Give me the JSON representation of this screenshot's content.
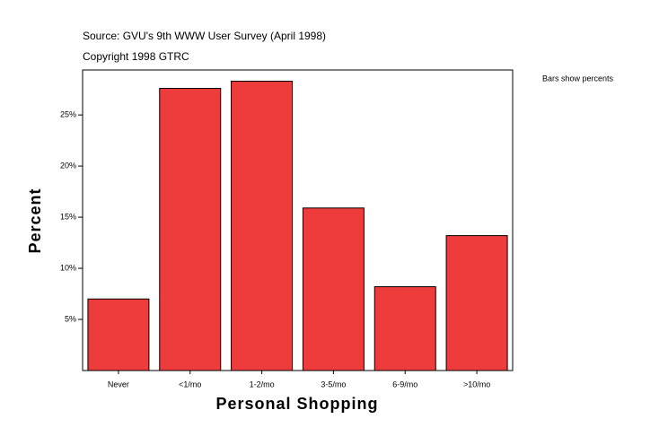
{
  "chart_data": {
    "type": "bar",
    "source": "Source: GVU's 9th WWW User Survey (April 1998)",
    "copyright": "Copyright 1998 GTRC",
    "note": "Bars show percents",
    "x_label": "Personal Shopping",
    "y_label": "Percent",
    "categories": [
      "Never",
      "<1/mo",
      "1-2/mo",
      "3-5/mo",
      "6-9/mo",
      ">10/mo"
    ],
    "values": [
      7.0,
      27.6,
      28.3,
      15.9,
      8.2,
      13.2
    ],
    "color": "#ee3b3b",
    "ylim": [
      0,
      29.4
    ],
    "yticks": [
      {
        "value": 5,
        "label": "5%"
      },
      {
        "value": 10,
        "label": "10%"
      },
      {
        "value": 15,
        "label": "15%"
      },
      {
        "value": 20,
        "label": "20%"
      },
      {
        "value": 25,
        "label": "25%"
      }
    ]
  }
}
